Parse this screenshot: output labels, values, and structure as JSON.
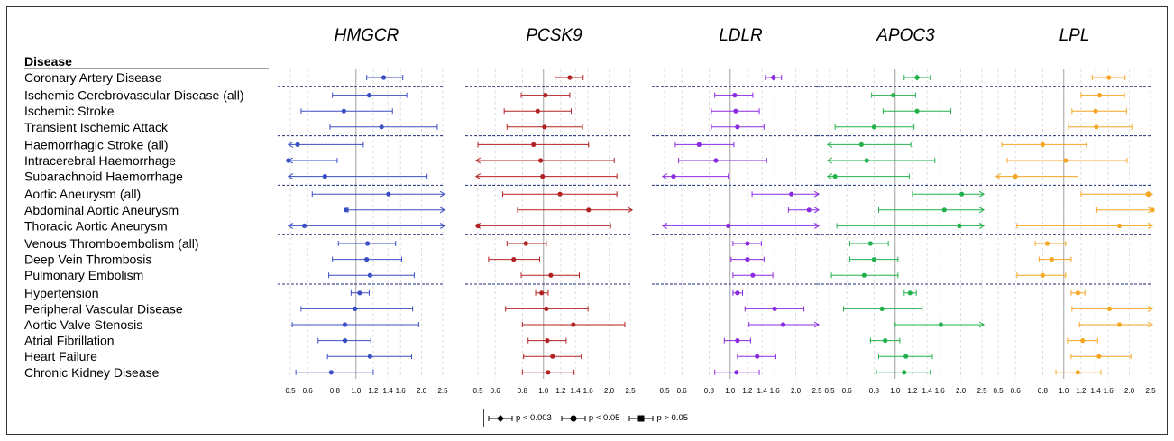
{
  "legend": {
    "items": [
      {
        "label": "p < 0.003",
        "symbol": "diamond"
      },
      {
        "label": "p < 0.05",
        "symbol": "circle"
      },
      {
        "label": "p > 0.05",
        "symbol": "square"
      }
    ]
  },
  "chart_data": {
    "type": "forest",
    "row_header": "Disease",
    "x_scale": "log",
    "xlim": [
      0.5,
      2.5
    ],
    "x_ticks": [
      0.5,
      0.6,
      0.8,
      1.0,
      1.2,
      1.4,
      1.6,
      2.0,
      2.5
    ],
    "x_tick_labels": [
      "0.5",
      "0.6",
      "0.8",
      "1.0",
      "1.2",
      "1.4",
      "1.6",
      "2.0",
      "2.5"
    ],
    "reference_line": 1.0,
    "grid": true,
    "groups": [
      [
        "Coronary Artery Disease"
      ],
      [
        "Ischemic Cerebrovascular Disease (all)",
        "Ischemic Stroke",
        "Transient Ischemic Attack"
      ],
      [
        "Haemorrhagic Stroke (all)",
        "Intracerebral Haemorrhage",
        "Subarachnoid Haemorrhage"
      ],
      [
        "Aortic Aneurysm (all)",
        "Abdominal Aortic Aneurysm",
        "Thoracic Aortic Aneurysm"
      ],
      [
        "Venous Thromboembolism (all)",
        "Deep Vein Thrombosis",
        "Pulmonary Embolism"
      ],
      [
        "Hypertension",
        "Peripheral Vascular Disease",
        "Aortic Valve Stenosis",
        "Atrial Fibrillation",
        "Heart Failure",
        "Chronic Kidney Disease"
      ]
    ],
    "panels": [
      {
        "gene": "HMGCR",
        "color": "#3b4fc4",
        "rows": [
          [
            1.34,
            1.12,
            1.64,
            "c"
          ],
          [
            1.15,
            0.78,
            1.71,
            "c"
          ],
          [
            0.88,
            0.56,
            1.47,
            "c"
          ],
          [
            1.31,
            0.76,
            2.36,
            "c"
          ],
          [
            0.54,
            0.49,
            1.08,
            "c"
          ],
          [
            0.49,
            0.49,
            0.82,
            "c"
          ],
          [
            0.72,
            0.49,
            2.12,
            "c"
          ],
          [
            1.41,
            0.63,
            2.55,
            "c"
          ],
          [
            0.9,
            0.92,
            2.55,
            "c"
          ],
          [
            0.58,
            0.49,
            2.55,
            "c"
          ],
          [
            1.13,
            0.83,
            1.52,
            "c"
          ],
          [
            1.12,
            0.78,
            1.62,
            "c"
          ],
          [
            1.16,
            0.75,
            1.85,
            "c"
          ],
          [
            1.04,
            0.95,
            1.15,
            "c"
          ],
          [
            0.99,
            0.56,
            1.82,
            "c"
          ],
          [
            0.89,
            0.51,
            1.94,
            "c"
          ],
          [
            0.89,
            0.67,
            1.17,
            "c"
          ],
          [
            1.16,
            0.74,
            1.8,
            "c"
          ],
          [
            0.77,
            0.53,
            1.2,
            "c"
          ]
        ]
      },
      {
        "gene": "PCSK9",
        "color": "#b22222",
        "rows": [
          [
            1.32,
            1.13,
            1.52,
            "c"
          ],
          [
            1.02,
            0.79,
            1.32,
            "c"
          ],
          [
            0.94,
            0.66,
            1.34,
            "c"
          ],
          [
            1.01,
            0.68,
            1.51,
            "c"
          ],
          [
            0.9,
            0.5,
            1.61,
            "c"
          ],
          [
            0.97,
            0.45,
            2.11,
            "c"
          ],
          [
            0.99,
            0.45,
            2.17,
            "c"
          ],
          [
            1.19,
            0.65,
            2.17,
            "c"
          ],
          [
            1.61,
            0.76,
            2.55,
            "c"
          ],
          [
            0.5,
            0.45,
            2.03,
            "c"
          ],
          [
            0.83,
            0.68,
            1.03,
            "c"
          ],
          [
            0.73,
            0.56,
            0.96,
            "c"
          ],
          [
            1.08,
            0.79,
            1.46,
            "c"
          ],
          [
            0.98,
            0.92,
            1.05,
            "c"
          ],
          [
            1.03,
            0.67,
            1.6,
            "c"
          ],
          [
            1.37,
            0.8,
            2.36,
            "c"
          ],
          [
            1.04,
            0.85,
            1.27,
            "c"
          ],
          [
            1.1,
            0.81,
            1.49,
            "c"
          ],
          [
            1.05,
            0.8,
            1.38,
            "c"
          ]
        ]
      },
      {
        "gene": "LDLR",
        "color": "#8a2be2",
        "rows": [
          [
            1.58,
            1.45,
            1.72,
            "d"
          ],
          [
            1.05,
            0.85,
            1.27,
            "c"
          ],
          [
            1.06,
            0.82,
            1.36,
            "c"
          ],
          [
            1.08,
            0.82,
            1.43,
            "c"
          ],
          [
            0.72,
            0.56,
            1.04,
            "c"
          ],
          [
            0.86,
            0.58,
            1.47,
            "c"
          ],
          [
            0.55,
            0.45,
            0.98,
            "c"
          ],
          [
            1.91,
            1.26,
            2.55,
            "c"
          ],
          [
            2.3,
            1.85,
            2.55,
            "c"
          ],
          [
            0.98,
            0.45,
            2.55,
            "c"
          ],
          [
            1.2,
            1.03,
            1.39,
            "c"
          ],
          [
            1.2,
            1.01,
            1.43,
            "c"
          ],
          [
            1.27,
            1.03,
            1.57,
            "c"
          ],
          [
            1.08,
            1.03,
            1.14,
            "c"
          ],
          [
            1.6,
            1.17,
            2.18,
            "c"
          ],
          [
            1.75,
            1.22,
            2.55,
            "c"
          ],
          [
            1.08,
            0.94,
            1.24,
            "c"
          ],
          [
            1.33,
            1.08,
            1.62,
            "c"
          ],
          [
            1.07,
            0.85,
            1.36,
            "c"
          ]
        ]
      },
      {
        "gene": "APOC3",
        "color": "#22b14c",
        "rows": [
          [
            1.26,
            1.1,
            1.45,
            "d"
          ],
          [
            0.98,
            0.78,
            1.24,
            "c"
          ],
          [
            1.26,
            0.88,
            1.8,
            "c"
          ],
          [
            0.8,
            0.53,
            1.22,
            "c"
          ],
          [
            0.7,
            0.49,
            1.18,
            "c"
          ],
          [
            0.74,
            0.49,
            1.52,
            "c"
          ],
          [
            0.53,
            0.49,
            1.16,
            "c"
          ],
          [
            2.02,
            1.2,
            2.55,
            "c"
          ],
          [
            1.68,
            0.84,
            2.55,
            "c"
          ],
          [
            1.97,
            0.54,
            2.55,
            "c"
          ],
          [
            0.77,
            0.62,
            0.93,
            "c"
          ],
          [
            0.8,
            0.62,
            1.03,
            "c"
          ],
          [
            0.72,
            0.51,
            1.03,
            "c"
          ],
          [
            1.17,
            1.1,
            1.25,
            "c"
          ],
          [
            0.87,
            0.58,
            1.33,
            "c"
          ],
          [
            1.62,
            1.0,
            2.55,
            "c"
          ],
          [
            0.9,
            0.77,
            1.05,
            "c"
          ],
          [
            1.12,
            0.84,
            1.48,
            "c"
          ],
          [
            1.1,
            0.82,
            1.45,
            "c"
          ]
        ]
      },
      {
        "gene": "LPL",
        "color": "#f5a623",
        "rows": [
          [
            1.61,
            1.35,
            1.91,
            "c"
          ],
          [
            1.46,
            1.2,
            1.9,
            "c"
          ],
          [
            1.4,
            1.09,
            1.94,
            "c"
          ],
          [
            1.41,
            1.05,
            2.05,
            "c"
          ],
          [
            0.8,
            0.52,
            1.27,
            "c"
          ],
          [
            1.02,
            0.55,
            1.95,
            "c"
          ],
          [
            0.6,
            0.45,
            1.16,
            "c"
          ],
          [
            2.43,
            1.2,
            2.55,
            "c"
          ],
          [
            2.55,
            1.42,
            2.55,
            "c"
          ],
          [
            1.8,
            0.61,
            2.55,
            "c"
          ],
          [
            0.84,
            0.74,
            1.02,
            "c"
          ],
          [
            0.88,
            0.77,
            1.08,
            "c"
          ],
          [
            0.8,
            0.61,
            1.02,
            "c"
          ],
          [
            1.16,
            1.08,
            1.25,
            "c"
          ],
          [
            1.62,
            1.09,
            2.55,
            "c"
          ],
          [
            1.8,
            1.18,
            2.55,
            "c"
          ],
          [
            1.22,
            1.04,
            1.43,
            "c"
          ],
          [
            1.45,
            1.08,
            2.03,
            "c"
          ],
          [
            1.16,
            0.92,
            1.48,
            "c"
          ]
        ]
      }
    ]
  }
}
